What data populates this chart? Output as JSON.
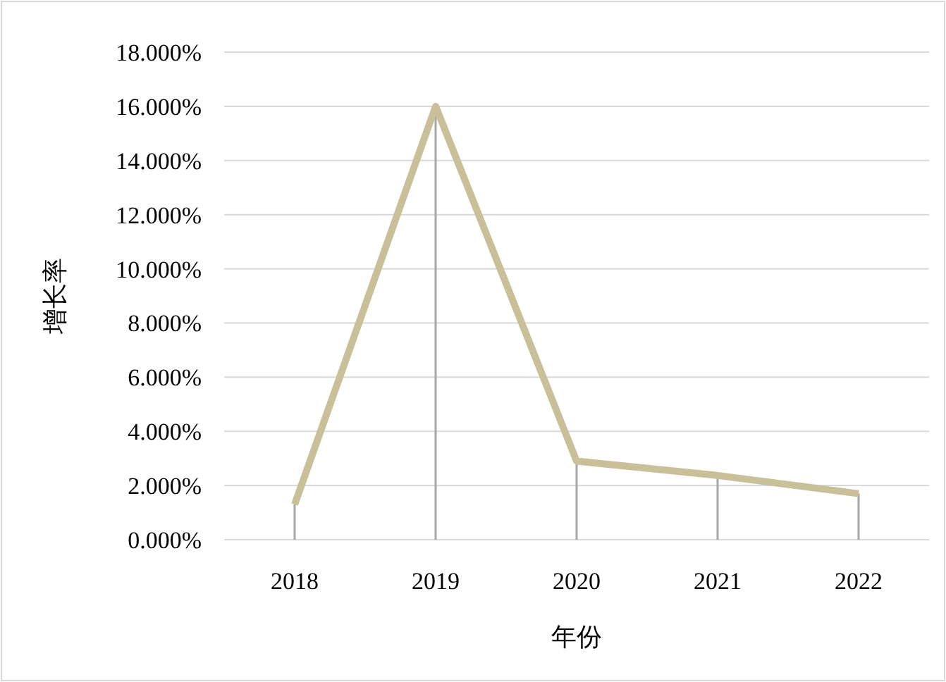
{
  "chart_data": {
    "type": "line",
    "xlabel": "年份",
    "ylabel": "增长率",
    "categories": [
      "2018",
      "2019",
      "2020",
      "2021",
      "2022"
    ],
    "series": [
      {
        "color": "#c9bf98",
        "values": [
          1.3,
          16.0,
          2.9,
          2.37,
          1.7
        ],
        "errors": [
          [
            1.3,
            0
          ],
          [
            16.0,
            0
          ],
          [
            2.9,
            0
          ],
          [
            2.37,
            0
          ],
          [
            1.7,
            0
          ]
        ]
      }
    ],
    "ylim": [
      0,
      18
    ],
    "yticks": [
      {
        "value": 0,
        "label": "0.000%"
      },
      {
        "value": 2,
        "label": "2.000%"
      },
      {
        "value": 4,
        "label": "4.000%"
      },
      {
        "value": 6,
        "label": "6.000%"
      },
      {
        "value": 8,
        "label": "8.000%"
      },
      {
        "value": 10,
        "label": "10.000%"
      },
      {
        "value": 12,
        "label": "12.000%"
      },
      {
        "value": 14,
        "label": "14.000%"
      },
      {
        "value": 16,
        "label": "16.000%"
      },
      {
        "value": 18,
        "label": "18.000%"
      }
    ],
    "grid": "y",
    "marker": "none",
    "line_style": "solid"
  }
}
